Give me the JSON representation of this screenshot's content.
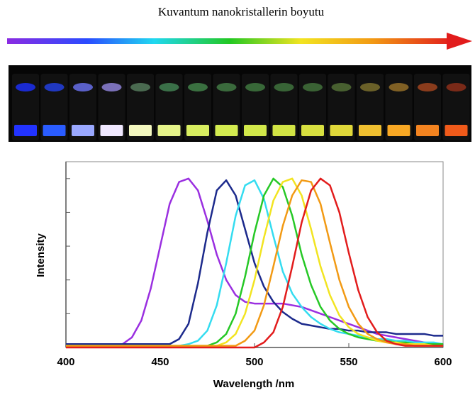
{
  "header": {
    "title": "Kuvantum nanokristallerin boyutu"
  },
  "chart_data": {
    "type": "line",
    "xlabel": "Wavelength /nm",
    "ylabel": "Intensity",
    "xlim": [
      400,
      600
    ],
    "xticks": [
      400,
      450,
      500,
      550,
      600
    ],
    "ylim": [
      0,
      1.1
    ],
    "yticks": [
      0,
      0.2,
      0.4,
      0.6,
      0.8,
      1.0
    ],
    "x": [
      400,
      405,
      410,
      415,
      420,
      425,
      430,
      435,
      440,
      445,
      450,
      455,
      460,
      465,
      470,
      475,
      480,
      485,
      490,
      495,
      500,
      505,
      510,
      515,
      520,
      525,
      530,
      535,
      540,
      545,
      550,
      555,
      560,
      565,
      570,
      575,
      580,
      585,
      590,
      595,
      600
    ],
    "series": [
      {
        "color": "#9a2fe0",
        "values": [
          0.01,
          0.01,
          0.01,
          0.01,
          0.01,
          0.01,
          0.02,
          0.06,
          0.16,
          0.35,
          0.6,
          0.85,
          0.98,
          1.0,
          0.93,
          0.75,
          0.55,
          0.4,
          0.31,
          0.27,
          0.26,
          0.26,
          0.26,
          0.26,
          0.25,
          0.24,
          0.22,
          0.2,
          0.18,
          0.16,
          0.14,
          0.12,
          0.1,
          0.08,
          0.07,
          0.06,
          0.05,
          0.04,
          0.03,
          0.02,
          0.01
        ]
      },
      {
        "color": "#1c2a8c",
        "values": [
          0.02,
          0.02,
          0.02,
          0.02,
          0.02,
          0.02,
          0.02,
          0.02,
          0.02,
          0.02,
          0.02,
          0.02,
          0.05,
          0.14,
          0.38,
          0.68,
          0.93,
          0.99,
          0.9,
          0.7,
          0.5,
          0.36,
          0.27,
          0.21,
          0.17,
          0.14,
          0.13,
          0.12,
          0.11,
          0.11,
          0.1,
          0.1,
          0.09,
          0.09,
          0.09,
          0.08,
          0.08,
          0.08,
          0.08,
          0.07,
          0.07
        ]
      },
      {
        "color": "#34dcf0",
        "values": [
          0.01,
          0.01,
          0.01,
          0.01,
          0.01,
          0.01,
          0.01,
          0.01,
          0.01,
          0.01,
          0.01,
          0.01,
          0.01,
          0.02,
          0.04,
          0.1,
          0.25,
          0.5,
          0.78,
          0.96,
          0.99,
          0.88,
          0.66,
          0.45,
          0.32,
          0.24,
          0.18,
          0.14,
          0.11,
          0.09,
          0.08,
          0.07,
          0.06,
          0.05,
          0.05,
          0.04,
          0.04,
          0.03,
          0.03,
          0.03,
          0.02
        ]
      },
      {
        "color": "#26c826",
        "values": [
          0.01,
          0.01,
          0.01,
          0.01,
          0.01,
          0.01,
          0.01,
          0.01,
          0.01,
          0.01,
          0.01,
          0.01,
          0.01,
          0.01,
          0.01,
          0.01,
          0.03,
          0.08,
          0.2,
          0.42,
          0.68,
          0.9,
          1.0,
          0.95,
          0.78,
          0.55,
          0.37,
          0.24,
          0.16,
          0.11,
          0.08,
          0.06,
          0.05,
          0.04,
          0.04,
          0.03,
          0.03,
          0.02,
          0.02,
          0.02,
          0.02
        ]
      },
      {
        "color": "#f2e421",
        "values": [
          0.01,
          0.01,
          0.01,
          0.01,
          0.01,
          0.01,
          0.01,
          0.01,
          0.01,
          0.01,
          0.01,
          0.01,
          0.01,
          0.01,
          0.01,
          0.01,
          0.01,
          0.03,
          0.08,
          0.2,
          0.4,
          0.65,
          0.87,
          0.98,
          1.0,
          0.9,
          0.7,
          0.48,
          0.31,
          0.19,
          0.12,
          0.08,
          0.06,
          0.04,
          0.03,
          0.03,
          0.02,
          0.02,
          0.02,
          0.01,
          0.01
        ]
      },
      {
        "color": "#f29a14",
        "values": [
          0.01,
          0.01,
          0.01,
          0.01,
          0.01,
          0.01,
          0.01,
          0.01,
          0.01,
          0.01,
          0.01,
          0.01,
          0.01,
          0.01,
          0.01,
          0.01,
          0.01,
          0.01,
          0.01,
          0.04,
          0.1,
          0.25,
          0.48,
          0.72,
          0.9,
          0.99,
          0.98,
          0.85,
          0.62,
          0.4,
          0.24,
          0.14,
          0.08,
          0.05,
          0.03,
          0.02,
          0.02,
          0.01,
          0.01,
          0.01,
          0.01
        ]
      },
      {
        "color": "#e21c1c",
        "values": [
          0,
          0,
          0,
          0,
          0,
          0,
          0,
          0,
          0,
          0,
          0,
          0,
          0,
          0,
          0,
          0,
          0,
          0,
          0,
          0,
          0,
          0.03,
          0.09,
          0.24,
          0.48,
          0.74,
          0.93,
          1.0,
          0.96,
          0.8,
          0.56,
          0.34,
          0.18,
          0.09,
          0.04,
          0.02,
          0.01,
          0.01,
          0.01,
          0.01,
          0.01
        ]
      }
    ]
  }
}
